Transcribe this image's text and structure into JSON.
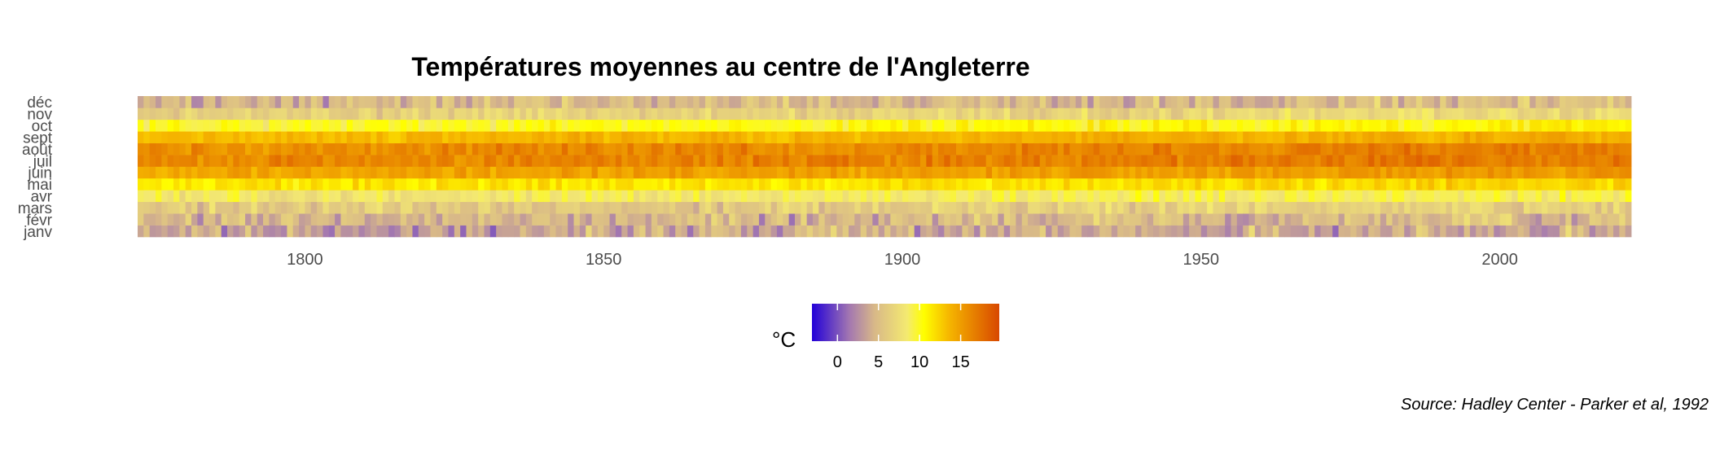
{
  "chart_data": {
    "type": "heatmap",
    "title": "Températures moyennes au centre de l'Angleterre",
    "caption": "Source: Hadley Center - Parker et al, 1992",
    "xlabel": "",
    "ylabel": "",
    "x_range": [
      1772,
      2022
    ],
    "x_ticks": [
      1800,
      1850,
      1900,
      1950,
      2000
    ],
    "months": [
      "janv",
      "févr",
      "mars",
      "avr",
      "mai",
      "juin",
      "juil",
      "août",
      "sept",
      "oct",
      "nov",
      "déc"
    ],
    "monthly_mean_temperature": [
      3.4,
      4.0,
      5.7,
      8.2,
      11.3,
      14.4,
      16.1,
      15.8,
      13.4,
      9.8,
      6.3,
      4.3
    ],
    "legend": {
      "title": "°C",
      "position": "bottom",
      "ticks": [
        0,
        5,
        10,
        15
      ],
      "range": [
        -3.1,
        19.7
      ],
      "color_stops": [
        {
          "value": -3.1,
          "color": "#2200d8"
        },
        {
          "value": 1.5,
          "color": "#a478b0"
        },
        {
          "value": 4.5,
          "color": "#d8b888"
        },
        {
          "value": 8.5,
          "color": "#f4ea70"
        },
        {
          "value": 10.5,
          "color": "#ffff00"
        },
        {
          "value": 13.5,
          "color": "#f6b800"
        },
        {
          "value": 19.7,
          "color": "#d84800"
        }
      ]
    },
    "grid": false
  }
}
